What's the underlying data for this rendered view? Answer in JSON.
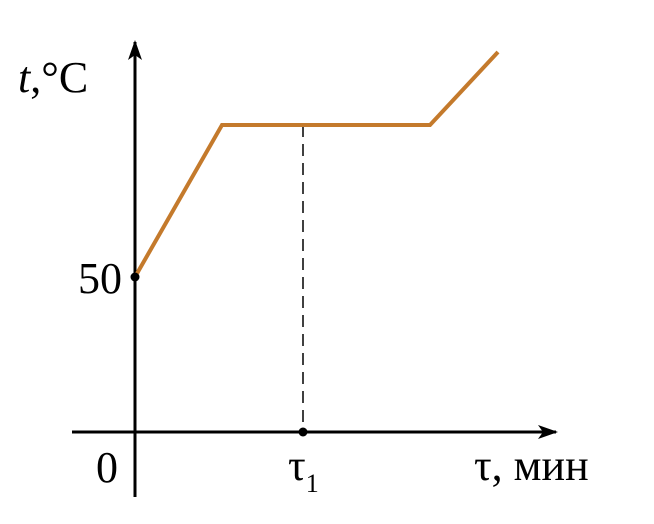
{
  "graph": {
    "y_axis_label": {
      "symbol": "t",
      "unit": ",°C"
    },
    "x_axis_label": "τ, мин",
    "origin_label": "0",
    "y_tick_label": "50",
    "x_tick_label": {
      "base": "τ",
      "sub": "1"
    }
  }
}
